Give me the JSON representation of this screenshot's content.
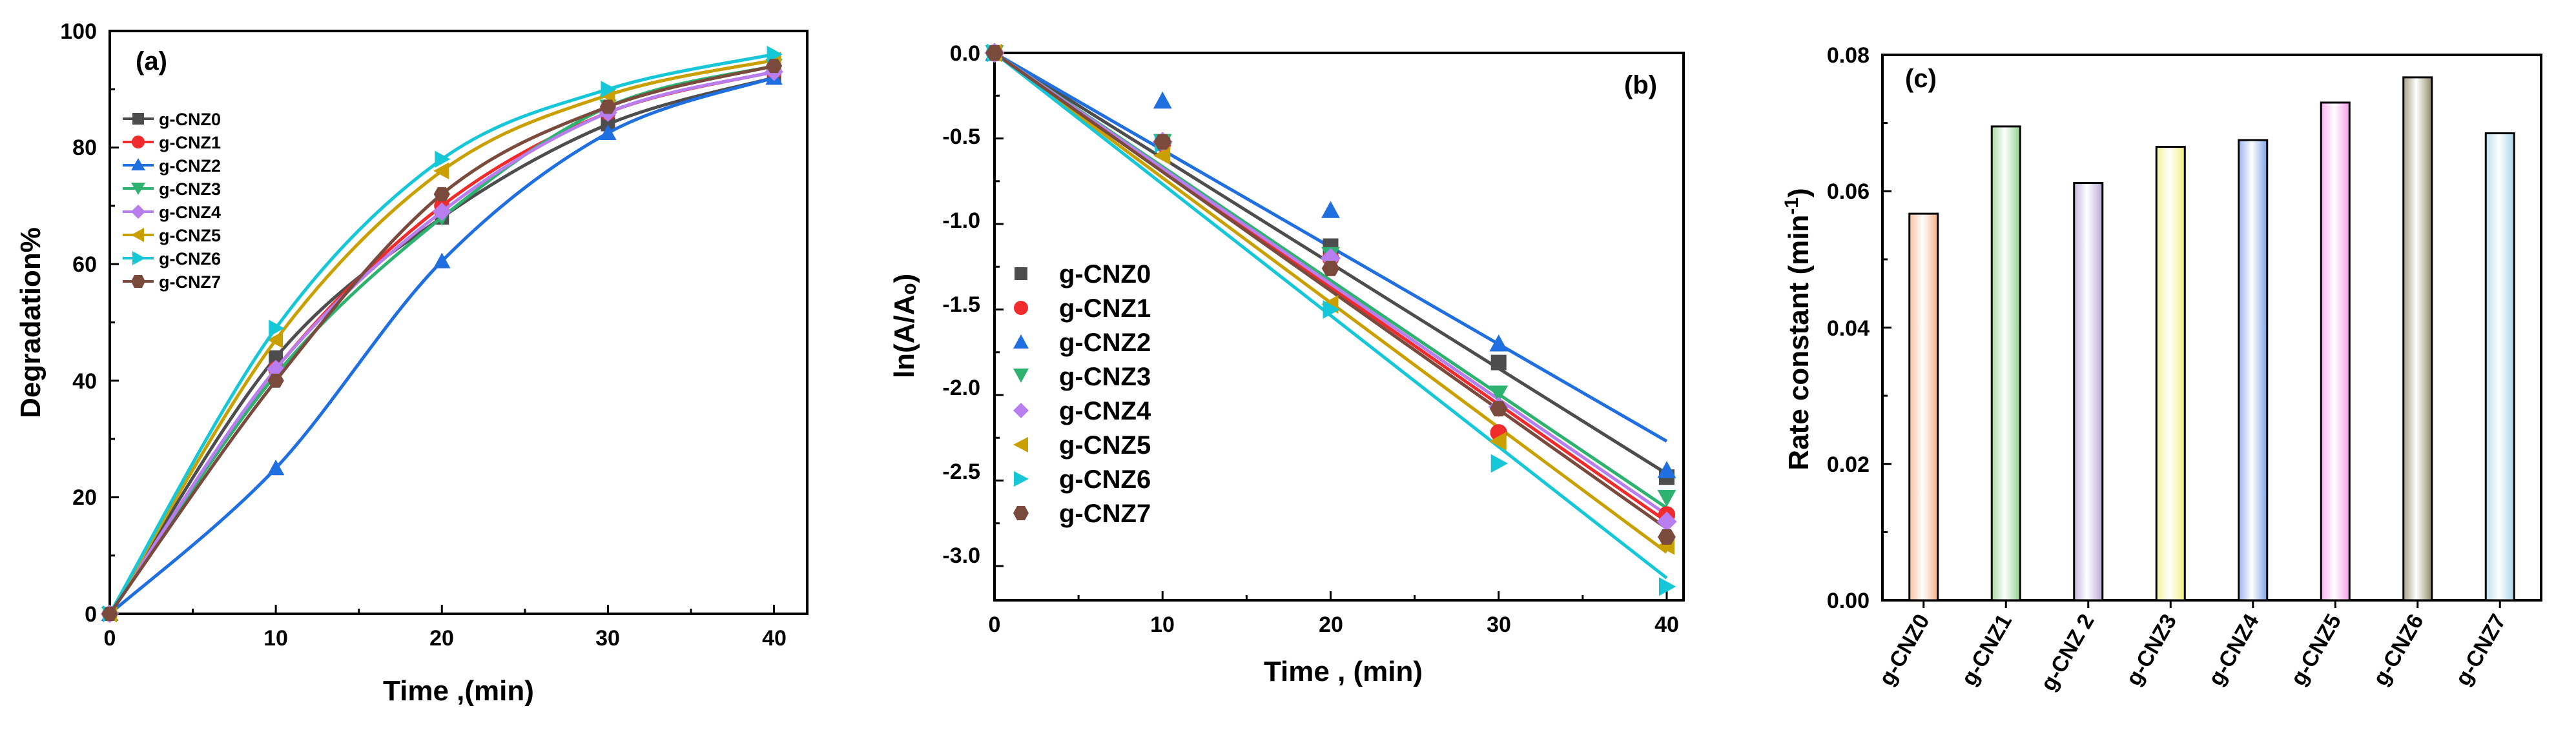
{
  "colors": {
    "series": [
      "#4d4d4d",
      "#ef2b2b",
      "#1f6fe0",
      "#2db36f",
      "#b87ef0",
      "#c9a000",
      "#16c7d8",
      "#7a4b3d"
    ],
    "bars": [
      "#f3b183",
      "#8fd08a",
      "#b7a6d6",
      "#f2ef7a",
      "#7ea2ea",
      "#f29bea",
      "#8d8a63",
      "#a6d5e6"
    ]
  },
  "chart_data": [
    {
      "panel": "(a)",
      "type": "line",
      "xlabel": "Time ,(min)",
      "ylabel": "Degradation%",
      "xlim": [
        0,
        42
      ],
      "ylim": [
        0,
        100
      ],
      "xticks": [
        "0",
        "10",
        "20",
        "30",
        "40"
      ],
      "yticks": [
        "0",
        "20",
        "40",
        "60",
        "80",
        "100"
      ],
      "legend_position": "upper-left",
      "x": [
        0,
        10,
        20,
        30,
        40
      ],
      "series": [
        {
          "name": "g-CNZ0",
          "marker": "square",
          "values": [
            0,
            44,
            68,
            84,
            92
          ]
        },
        {
          "name": "g-CNZ1",
          "marker": "circle",
          "values": [
            0,
            42,
            70,
            86,
            93
          ]
        },
        {
          "name": "g-CNZ2",
          "marker": "triangle-up",
          "values": [
            0,
            25,
            60.5,
            82.5,
            92
          ]
        },
        {
          "name": "g-CNZ3",
          "marker": "triangle-down",
          "values": [
            0,
            41,
            68,
            87,
            94
          ]
        },
        {
          "name": "g-CNZ4",
          "marker": "diamond",
          "values": [
            0,
            42,
            69,
            86,
            93
          ]
        },
        {
          "name": "g-CNZ5",
          "marker": "triangle-left",
          "values": [
            0,
            47,
            76,
            89,
            95
          ]
        },
        {
          "name": "g-CNZ6",
          "marker": "triangle-right",
          "values": [
            0,
            49,
            78,
            90,
            96
          ]
        },
        {
          "name": "g-CNZ7",
          "marker": "hexagon",
          "values": [
            0,
            40,
            72,
            87,
            94
          ]
        }
      ]
    },
    {
      "panel": "(b)",
      "type": "scatter",
      "xlabel": "Time , (min)",
      "ylabel": "ln(A/Aₒ)",
      "xlim": [
        0,
        41
      ],
      "ylim": [
        -3.2,
        0
      ],
      "xticks": [
        "0",
        "10",
        "20",
        "30",
        "40"
      ],
      "yticks": [
        "0.0",
        "-0.5",
        "-1.0",
        "-1.5",
        "-2.0",
        "-2.5",
        "-3.0"
      ],
      "legend_position": "lower-left",
      "x": [
        0,
        10,
        20,
        30,
        40
      ],
      "series": [
        {
          "name": "g-CNZ0",
          "marker": "square",
          "values": [
            0,
            -0.52,
            -1.13,
            -1.81,
            -2.48
          ],
          "fit_end": -2.46
        },
        {
          "name": "g-CNZ1",
          "marker": "circle",
          "values": [
            0,
            -0.53,
            -1.2,
            -2.22,
            -2.7
          ],
          "fit_end": -2.74
        },
        {
          "name": "g-CNZ2",
          "marker": "triangle-up",
          "values": [
            0,
            -0.28,
            -0.92,
            -1.7,
            -2.44
          ],
          "fit_end": -2.27
        },
        {
          "name": "g-CNZ3",
          "marker": "triangle-down",
          "values": [
            0,
            -0.52,
            -1.18,
            -1.99,
            -2.6
          ],
          "fit_end": -2.66
        },
        {
          "name": "g-CNZ4",
          "marker": "diamond",
          "values": [
            0,
            -0.52,
            -1.2,
            -2.07,
            -2.74
          ],
          "fit_end": -2.7
        },
        {
          "name": "g-CNZ5",
          "marker": "triangle-left",
          "values": [
            0,
            -0.6,
            -1.47,
            -2.27,
            -2.88
          ],
          "fit_end": -2.92
        },
        {
          "name": "g-CNZ6",
          "marker": "triangle-right",
          "values": [
            0,
            -0.53,
            -1.5,
            -2.4,
            -3.12
          ],
          "fit_end": -3.07
        },
        {
          "name": "g-CNZ7",
          "marker": "hexagon",
          "values": [
            0,
            -0.52,
            -1.26,
            -2.08,
            -2.83
          ],
          "fit_end": -2.78
        }
      ]
    },
    {
      "panel": "(c)",
      "type": "bar",
      "xlabel": "",
      "ylabel": "Rate constant (min",
      "ylabel_sup": "-1",
      "ylabel_end": ")",
      "ylim": [
        0,
        0.08
      ],
      "yticks": [
        "0.00",
        "0.02",
        "0.04",
        "0.06",
        "0.08"
      ],
      "categories": [
        "g-CNZ0",
        "g-CNZ1",
        "g-CNZ 2",
        "g-CNZ3",
        "g-CNZ4",
        "g-CNZ5",
        "g-CNZ6",
        "g-CNZ7"
      ],
      "values": [
        0.0567,
        0.0695,
        0.0612,
        0.0665,
        0.0675,
        0.073,
        0.0767,
        0.0685
      ]
    }
  ]
}
